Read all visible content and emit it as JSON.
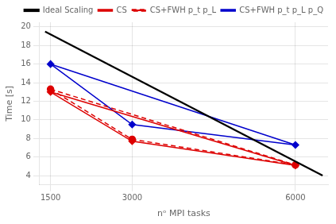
{
  "chart_data": {
    "type": "line",
    "xlabel": "nᵒ MPI tasks",
    "ylabel": "Time [s]",
    "xlim": [
      1300,
      6600
    ],
    "xticks": [
      1500,
      3000,
      6000
    ],
    "ylim": [
      3,
      20.5
    ],
    "yticks": [
      4,
      6,
      8,
      10,
      12,
      14,
      16,
      18,
      20
    ],
    "grid": true,
    "legend": "upper right",
    "series": [
      {
        "name": "Ideal Scaling",
        "color": "#000000",
        "line_style": "solid",
        "marker": "none",
        "x": [
          1400,
          6500
        ],
        "values": [
          19.5,
          4.0
        ]
      },
      {
        "color": "#dd0000",
        "line_style": "solid",
        "marker": "none",
        "x": [
          1500,
          6000
        ],
        "values": [
          13.0,
          5.1
        ]
      },
      {
        "name": "CS",
        "color": "#dd0000",
        "line_style": "solid",
        "marker": "diamond",
        "x": [
          1500,
          3000,
          6000
        ],
        "values": [
          13.0,
          7.7,
          5.1
        ]
      },
      {
        "color": "#dd0000",
        "line_style": "dashed",
        "marker": "none",
        "x": [
          1500,
          6000
        ],
        "values": [
          13.3,
          5.15
        ]
      },
      {
        "name": "CS+FWH p_t p_L",
        "color": "#dd0000",
        "line_style": "dashed",
        "marker": "circle",
        "x": [
          1500,
          3000,
          6000
        ],
        "values": [
          13.3,
          7.9,
          5.15
        ]
      },
      {
        "color": "#0000cc",
        "line_style": "solid",
        "marker": "none",
        "x": [
          1500,
          6000
        ],
        "values": [
          16.0,
          7.3
        ]
      },
      {
        "name": "CS+FWH p_t p_L p_Q",
        "color": "#0000cc",
        "line_style": "solid",
        "marker": "diamond",
        "x": [
          1500,
          3000,
          6000
        ],
        "values": [
          16.0,
          9.5,
          7.3
        ]
      }
    ]
  }
}
